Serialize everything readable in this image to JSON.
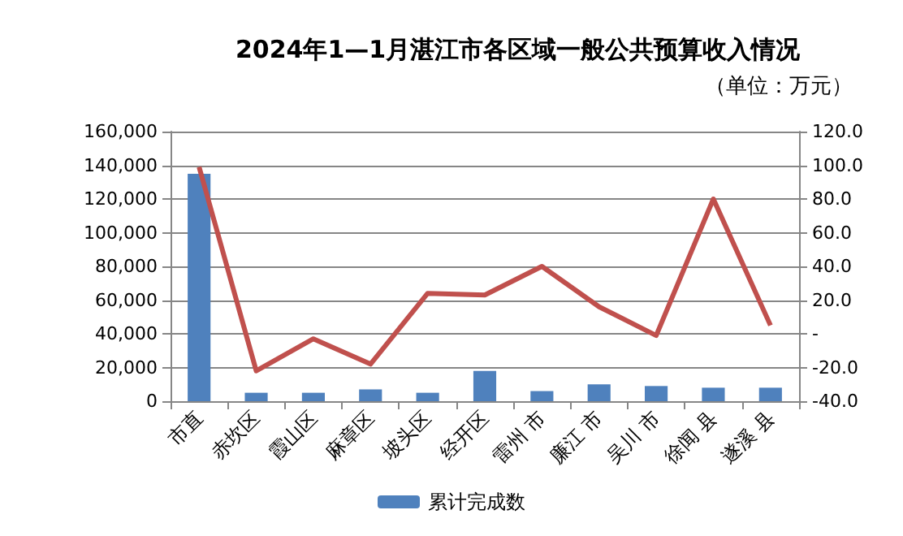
{
  "chart_data": {
    "type": "bar",
    "title": "2024年1—1月湛江市各区域一般公共预算收入情况",
    "subtitle": "（单位：万元）",
    "categories": [
      "市直",
      "赤坎区",
      "霞山区",
      "麻章区",
      "坡头区",
      "经开区",
      "雷州 市",
      "廉江 市",
      "吴川 市",
      "徐闻 县",
      "遂溪 县"
    ],
    "series": [
      {
        "name": "累计完成数",
        "color": "#4f81bd",
        "values": [
          135000,
          5000,
          5000,
          7000,
          5000,
          18000,
          6000,
          10000,
          9000,
          8000,
          8000
        ]
      },
      {
        "type": "line",
        "axis": "y2",
        "color": "#c0504d",
        "values": [
          99,
          -22,
          -3,
          -18,
          24,
          23,
          40,
          16,
          -1,
          80,
          5
        ]
      }
    ],
    "ylim": [
      0,
      160000
    ],
    "yticks": [
      {
        "value": 0,
        "label": "0"
      },
      {
        "value": 20000,
        "label": "20,000"
      },
      {
        "value": 40000,
        "label": "40,000"
      },
      {
        "value": 60000,
        "label": "60,000"
      },
      {
        "value": 80000,
        "label": "80,000"
      },
      {
        "value": 100000,
        "label": "100,000"
      },
      {
        "value": 120000,
        "label": "120,000"
      },
      {
        "value": 140000,
        "label": "140,000"
      },
      {
        "value": 160000,
        "label": "160,000"
      }
    ],
    "y2lim": [
      -40,
      120
    ],
    "y2ticks": [
      {
        "value": -40,
        "label": "-40.0"
      },
      {
        "value": -20,
        "label": "-20.0"
      },
      {
        "value": 0,
        "label": "-"
      },
      {
        "value": 20,
        "label": "20.0"
      },
      {
        "value": 40,
        "label": "40.0"
      },
      {
        "value": 60,
        "label": "60.0"
      },
      {
        "value": 80,
        "label": "80.0"
      },
      {
        "value": 100,
        "label": "100.0"
      },
      {
        "value": 120,
        "label": "120.0"
      }
    ],
    "grid": "y",
    "legend": "bottom",
    "marker": "none",
    "line_style": "solid"
  }
}
